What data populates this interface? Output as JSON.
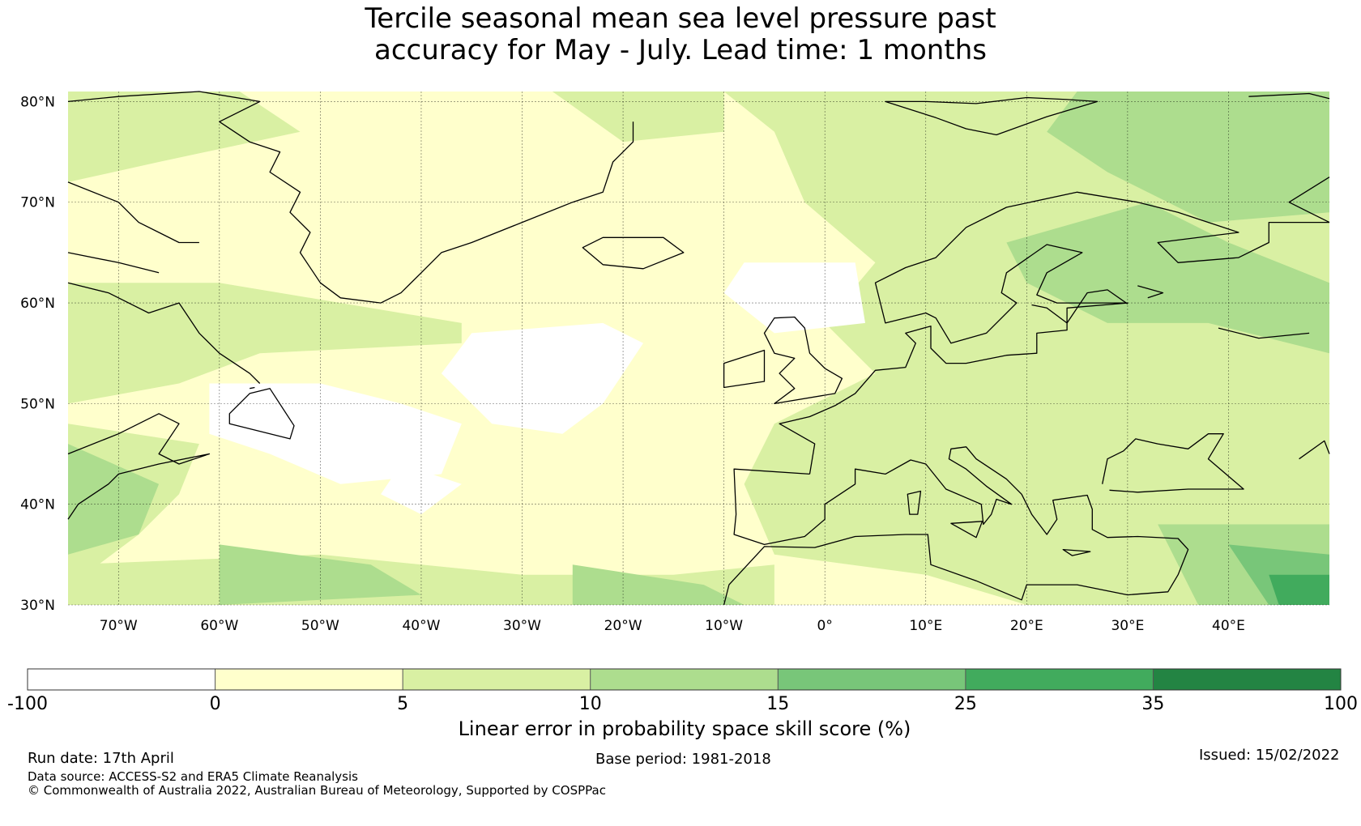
{
  "title": {
    "line1": "Tercile seasonal mean sea level pressure past",
    "line2": "accuracy for May - July. Lead time: 1 months"
  },
  "map": {
    "lat_labels": [
      "80°N",
      "70°N",
      "60°N",
      "50°N",
      "40°N",
      "30°N"
    ],
    "lon_labels": [
      "70°W",
      "60°W",
      "50°W",
      "40°W",
      "30°W",
      "20°W",
      "10°W",
      "0°",
      "10°E",
      "20°E",
      "30°E",
      "40°E"
    ],
    "lon_range": [
      -75,
      50
    ],
    "lat_range": [
      30,
      81
    ]
  },
  "colorbar": {
    "ticks": [
      "-100",
      "0",
      "5",
      "10",
      "15",
      "25",
      "35",
      "100"
    ],
    "colors": [
      "#ffffff",
      "#ffffcc",
      "#d9f0a3",
      "#addd8e",
      "#78c679",
      "#41ab5d",
      "#238443"
    ],
    "label": "Linear error in probability space skill score (%)"
  },
  "footer": {
    "run_date": "Run date: 17th April",
    "base_period": "Base period: 1981-2018",
    "issued": "Issued: 15/02/2022",
    "data_source": "Data source: ACCESS-S2 and ERA5 Climate Reanalysis",
    "copyright": "© Commonwealth of Australia 2022, Australian Bureau of Meteorology, Supported by COSPPac"
  }
}
